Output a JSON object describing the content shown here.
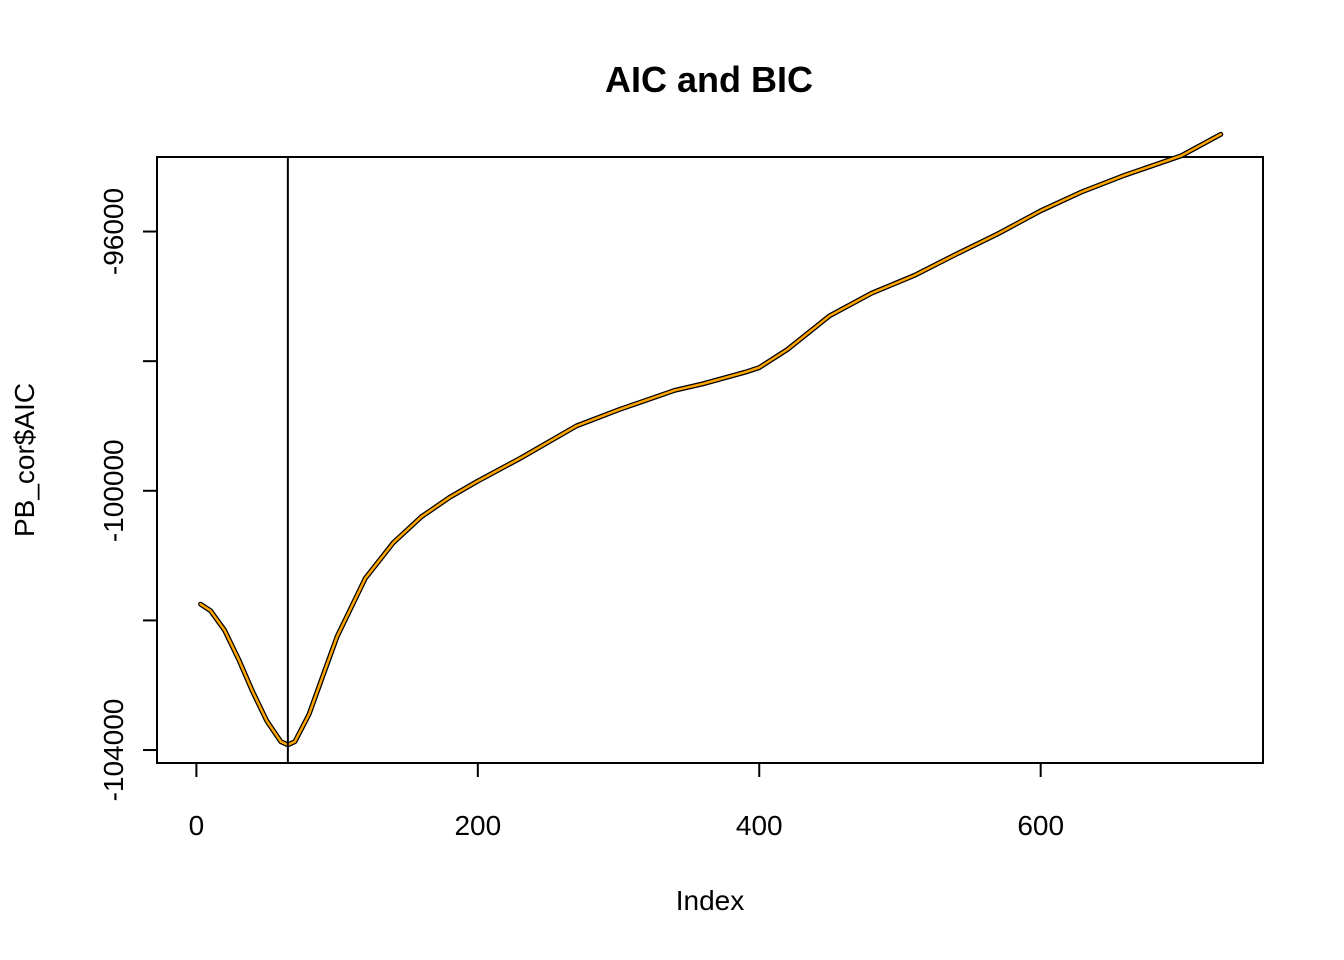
{
  "chart_data": {
    "type": "line",
    "title": "AIC and BIC",
    "xlabel": "Index",
    "ylabel": "PB_cor$AIC",
    "xlim": [
      -28,
      758
    ],
    "ylim": [
      -104200,
      -94850
    ],
    "x_ticks": [
      0,
      200,
      400,
      600
    ],
    "x_tick_labels": [
      "0",
      "200",
      "400",
      "600"
    ],
    "y_ticks": [
      -104000,
      -102000,
      -100000,
      -98000,
      -96000
    ],
    "y_tick_labels": [
      "-104000",
      "",
      "-100000",
      "",
      "-96000"
    ],
    "vline": {
      "x": 65
    },
    "grid": false,
    "legend": "none",
    "series": [
      {
        "color": "#000000",
        "x": [
          3,
          10,
          20,
          30,
          40,
          50,
          60,
          65,
          70,
          80,
          90,
          100,
          120,
          140,
          160,
          180,
          200,
          230,
          270,
          300,
          340,
          360,
          390,
          400,
          420,
          450,
          480,
          510,
          540,
          570,
          600,
          630,
          660,
          700,
          728
        ],
        "values": [
          -101750,
          -101850,
          -102150,
          -102600,
          -103100,
          -103550,
          -103870,
          -103920,
          -103870,
          -103450,
          -102850,
          -102250,
          -101350,
          -100800,
          -100400,
          -100100,
          -99850,
          -99500,
          -99000,
          -98750,
          -98450,
          -98350,
          -98170,
          -98100,
          -97820,
          -97300,
          -96950,
          -96680,
          -96350,
          -96030,
          -95680,
          -95380,
          -95130,
          -94830,
          -94500
        ]
      },
      {
        "color": "#FFA500",
        "x": [
          3,
          10,
          20,
          30,
          40,
          50,
          60,
          65,
          70,
          80,
          90,
          100,
          120,
          140,
          160,
          180,
          200,
          230,
          270,
          300,
          340,
          360,
          390,
          400,
          420,
          450,
          480,
          510,
          540,
          570,
          600,
          630,
          660,
          700,
          728
        ],
        "values": [
          -101750,
          -101850,
          -102150,
          -102600,
          -103100,
          -103550,
          -103870,
          -103920,
          -103870,
          -103450,
          -102850,
          -102250,
          -101350,
          -100800,
          -100400,
          -100100,
          -99850,
          -99500,
          -99000,
          -98750,
          -98450,
          -98350,
          -98170,
          -98100,
          -97820,
          -97300,
          -96950,
          -96680,
          -96350,
          -96030,
          -95680,
          -95380,
          -95130,
          -94830,
          -94500
        ]
      }
    ]
  }
}
